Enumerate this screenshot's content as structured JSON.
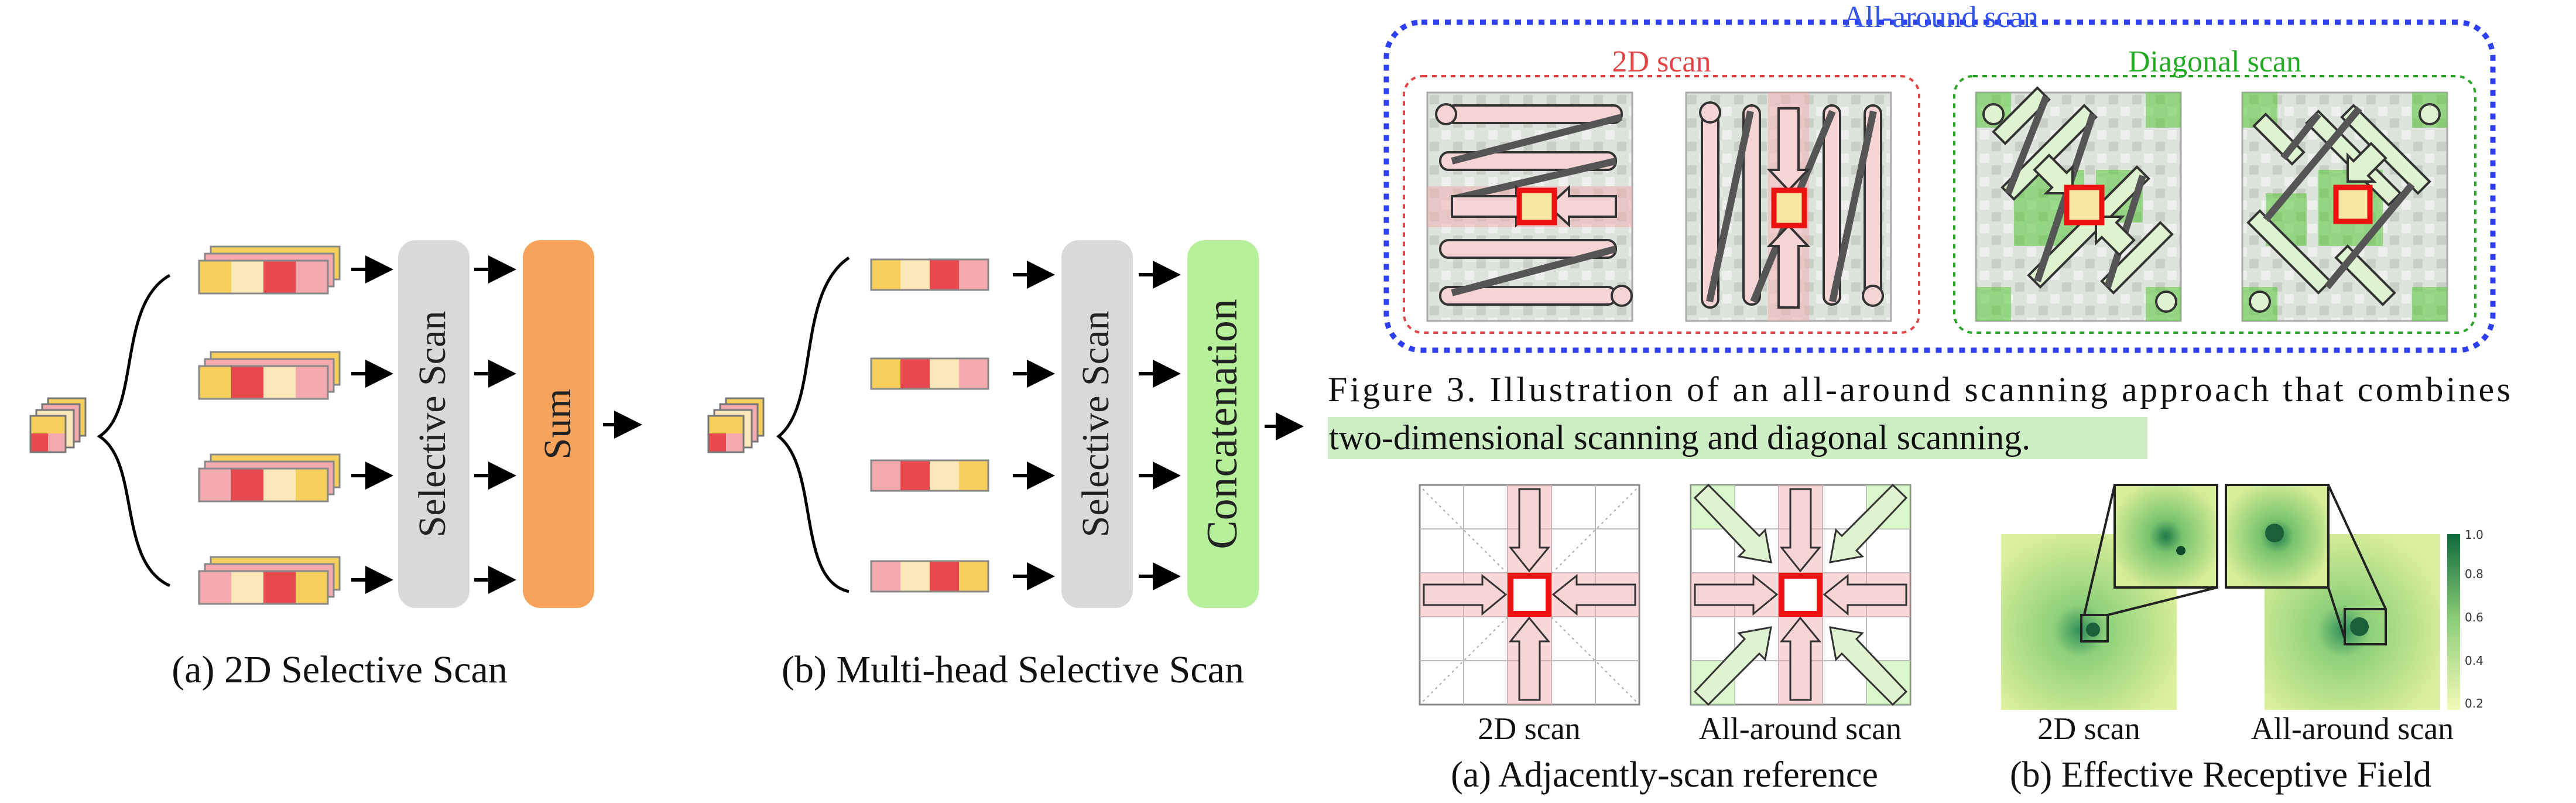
{
  "colors": {
    "yellow": "#f7cf5c",
    "cream": "#fbe7b8",
    "red": "#e8494f",
    "pink": "#f3a9ad",
    "gray_box": "#d9d9d9",
    "orange_box": "#f7a35c",
    "green_box": "#b7f09a",
    "blue_border": "#2e3ff2",
    "red_border": "#e04444",
    "green_border": "#2aa52a",
    "highlight": "#cdeec4"
  },
  "panel_a": {
    "scan_label": "Selective Scan",
    "sum_label": "Sum",
    "caption": "(a) 2D Selective Scan"
  },
  "panel_b": {
    "scan_label": "Selective Scan",
    "concat_label": "Concatenation",
    "caption": "(b) Multi-head Selective Scan"
  },
  "fig3": {
    "outer_title": "All-around scan",
    "left_title": "2D scan",
    "right_title": "Diagonal scan",
    "caption_line1": "Figure 3.  Illustration of an all-around scanning approach that combines",
    "caption_line2": "two-dimensional scanning and diagonal scanning."
  },
  "bottom_a": {
    "left_label": "2D scan",
    "right_label": "All-around scan",
    "caption": "(a) Adjacently-scan reference"
  },
  "bottom_b": {
    "left_label": "2D scan",
    "right_label": "All-around scan",
    "caption": "(b) Effective Receptive Field",
    "colorbar_ticks": [
      "1.0",
      "0.8",
      "0.6",
      "0.4",
      "0.2"
    ]
  }
}
